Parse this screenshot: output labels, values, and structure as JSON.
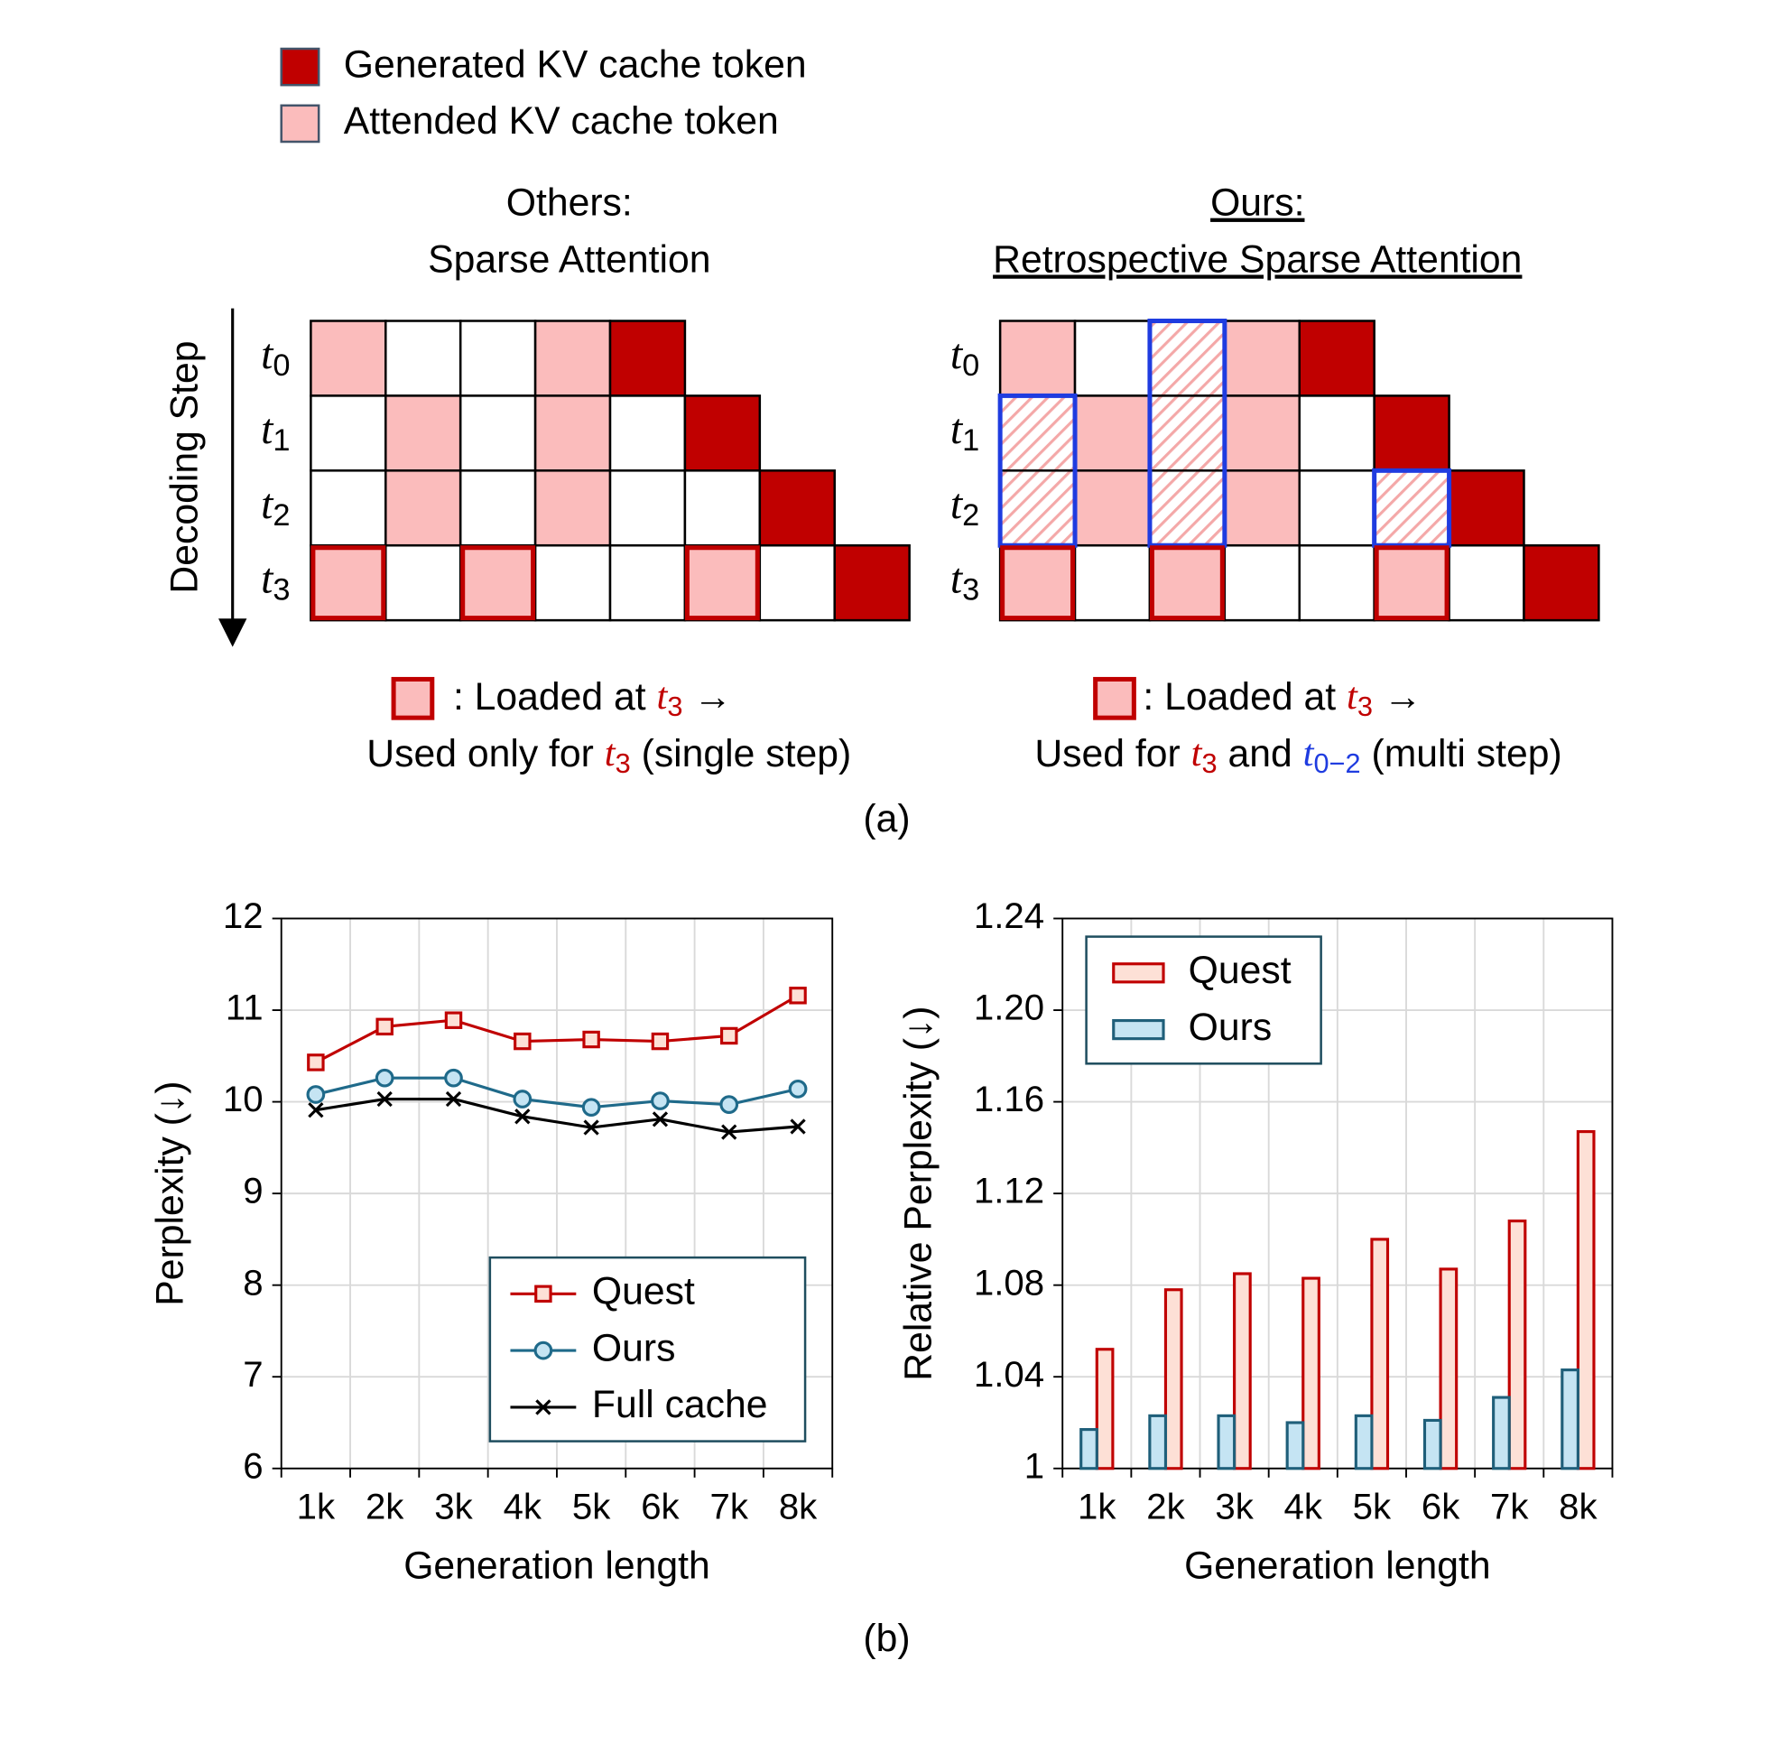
{
  "legend": [
    {
      "text": "Generated KV cache token",
      "color": "#c00000"
    },
    {
      "text": "Attended KV cache token",
      "color": "#fbbcbc"
    }
  ],
  "axis_label": "Decoding Step",
  "panels": [
    {
      "heading": [
        "Others:",
        "Sparse Attention"
      ],
      "underline": false,
      "rows": [
        {
          "label": {
            "text": "t",
            "sub": "0"
          },
          "cells": "A..AG"
        },
        {
          "label": {
            "text": "t",
            "sub": "1"
          },
          "cells": ".A.A.G"
        },
        {
          "label": {
            "text": "t",
            "sub": "2"
          },
          "cells": ".A.A..G"
        },
        {
          "label": {
            "text": "t",
            "sub": "3"
          },
          "cells": "L.L..L.G"
        }
      ],
      "caption": [
        [
          {
            "text": " : Loaded at "
          },
          {
            "text": "t",
            "sub": "3",
            "color": "#c00000"
          },
          {
            "text": " →"
          }
        ],
        [
          {
            "text": "Used only for "
          },
          {
            "text": "t",
            "sub": "3",
            "color": "#c00000"
          },
          {
            "text": " (single step)"
          }
        ]
      ]
    },
    {
      "heading": [
        "Ours:",
        "Retrospective Sparse Attention"
      ],
      "underline": true,
      "rows": [
        {
          "label": {
            "text": "t",
            "sub": "0"
          },
          "cells": "A.HAG"
        },
        {
          "label": {
            "text": "t",
            "sub": "1"
          },
          "cells": "HAHA.G"
        },
        {
          "label": {
            "text": "t",
            "sub": "2"
          },
          "cells": "HAHA.HG"
        },
        {
          "label": {
            "text": "t",
            "sub": "3"
          },
          "cells": "L.L..L.G"
        }
      ],
      "caption": [
        [
          {
            "text": ": Loaded at "
          },
          {
            "text": "t",
            "sub": "3",
            "color": "#c00000"
          },
          {
            "text": " →"
          }
        ],
        [
          {
            "text": "Used for "
          },
          {
            "text": "t",
            "sub": "3",
            "color": "#c00000"
          },
          {
            "text": " and "
          },
          {
            "text": "t",
            "sub": "0−2",
            "color": "#1f3ce0"
          },
          {
            "text": " (multi step)"
          }
        ]
      ]
    }
  ],
  "captions": {
    "a": "(a)",
    "b": "(b)"
  },
  "chart_data": [
    {
      "type": "line",
      "categories": [
        "1k",
        "2k",
        "3k",
        "4k",
        "5k",
        "6k",
        "7k",
        "8k"
      ],
      "x_label": "Generation length",
      "y_label": "Perplexity (↓)",
      "ylim": [
        6,
        12
      ],
      "yticks": [
        6,
        7,
        8,
        9,
        10,
        11,
        12
      ],
      "grid": true,
      "legend": "lower right",
      "series": [
        {
          "name": "Quest",
          "color": "#c00000",
          "marker": "square",
          "values": [
            10.43,
            10.82,
            10.89,
            10.66,
            10.68,
            10.66,
            10.72,
            11.16
          ]
        },
        {
          "name": "Ours",
          "color": "#1f6a8a",
          "marker": "circle",
          "values": [
            10.08,
            10.26,
            10.26,
            10.03,
            9.94,
            10.01,
            9.97,
            10.14
          ]
        },
        {
          "name": "Full cache",
          "color": "#000000",
          "marker": "x",
          "values": [
            9.91,
            10.03,
            10.03,
            9.84,
            9.72,
            9.81,
            9.67,
            9.73
          ]
        }
      ]
    },
    {
      "type": "bar",
      "categories": [
        "1k",
        "2k",
        "3k",
        "4k",
        "5k",
        "6k",
        "7k",
        "8k"
      ],
      "x_label": "Generation length",
      "y_label": "Relative Perplexity (↓)",
      "ylim": [
        1,
        1.24
      ],
      "yticks": [
        1,
        1.04,
        1.08,
        1.12,
        1.16,
        {
          "value": 1.2,
          "label": "1.20"
        },
        1.24
      ],
      "grid": true,
      "legend": "upper left",
      "series": [
        {
          "name": "Quest",
          "color": "#c00000",
          "fill": "#fde0d6",
          "values": [
            1.052,
            1.078,
            1.085,
            1.083,
            1.1,
            1.087,
            1.108,
            1.147
          ]
        },
        {
          "name": "Ours",
          "color": "#1f5f7a",
          "fill": "#c5e4f3",
          "values": [
            1.017,
            1.023,
            1.023,
            1.02,
            1.023,
            1.021,
            1.031,
            1.043
          ]
        }
      ]
    }
  ]
}
